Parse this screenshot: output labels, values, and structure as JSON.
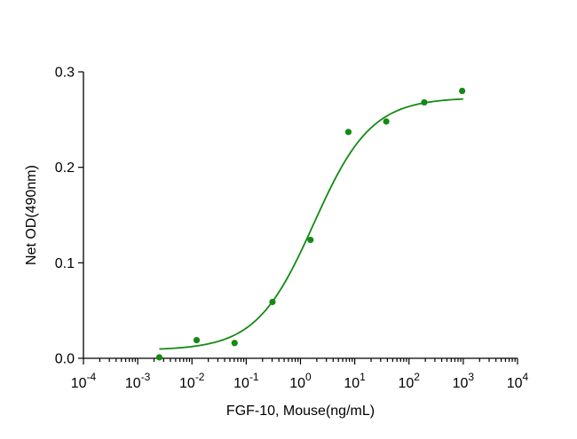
{
  "chart_data": {
    "type": "scatter",
    "title": "",
    "xlabel": "FGF-10, Mouse(ng/mL)",
    "ylabel": "Net OD(490nm)",
    "x_scale": "log10",
    "xlim": [
      0.0001,
      10000
    ],
    "ylim": [
      0,
      0.3
    ],
    "x_ticks": [
      {
        "base": "10",
        "exp": "-4"
      },
      {
        "base": "10",
        "exp": "-3"
      },
      {
        "base": "10",
        "exp": "-2"
      },
      {
        "base": "10",
        "exp": "-1"
      },
      {
        "base": "10",
        "exp": "0"
      },
      {
        "base": "10",
        "exp": "1"
      },
      {
        "base": "10",
        "exp": "2"
      },
      {
        "base": "10",
        "exp": "3"
      },
      {
        "base": "10",
        "exp": "4"
      }
    ],
    "y_ticks": [
      "0.0",
      "0.1",
      "0.2",
      "0.3"
    ],
    "grid": false,
    "color": "#138a13",
    "points": [
      {
        "x": 0.0025,
        "y": 0.001
      },
      {
        "x": 0.0122,
        "y": 0.019
      },
      {
        "x": 0.061,
        "y": 0.016
      },
      {
        "x": 0.305,
        "y": 0.059
      },
      {
        "x": 1.53,
        "y": 0.124
      },
      {
        "x": 7.63,
        "y": 0.237
      },
      {
        "x": 38.1,
        "y": 0.248
      },
      {
        "x": 191,
        "y": 0.268
      },
      {
        "x": 954,
        "y": 0.28
      }
    ],
    "fit": {
      "model": "4PL",
      "bottom": 0.0085,
      "top": 0.273,
      "ec50": 1.75,
      "hill": 0.82,
      "x_range": [
        0.0025,
        1000
      ]
    }
  }
}
